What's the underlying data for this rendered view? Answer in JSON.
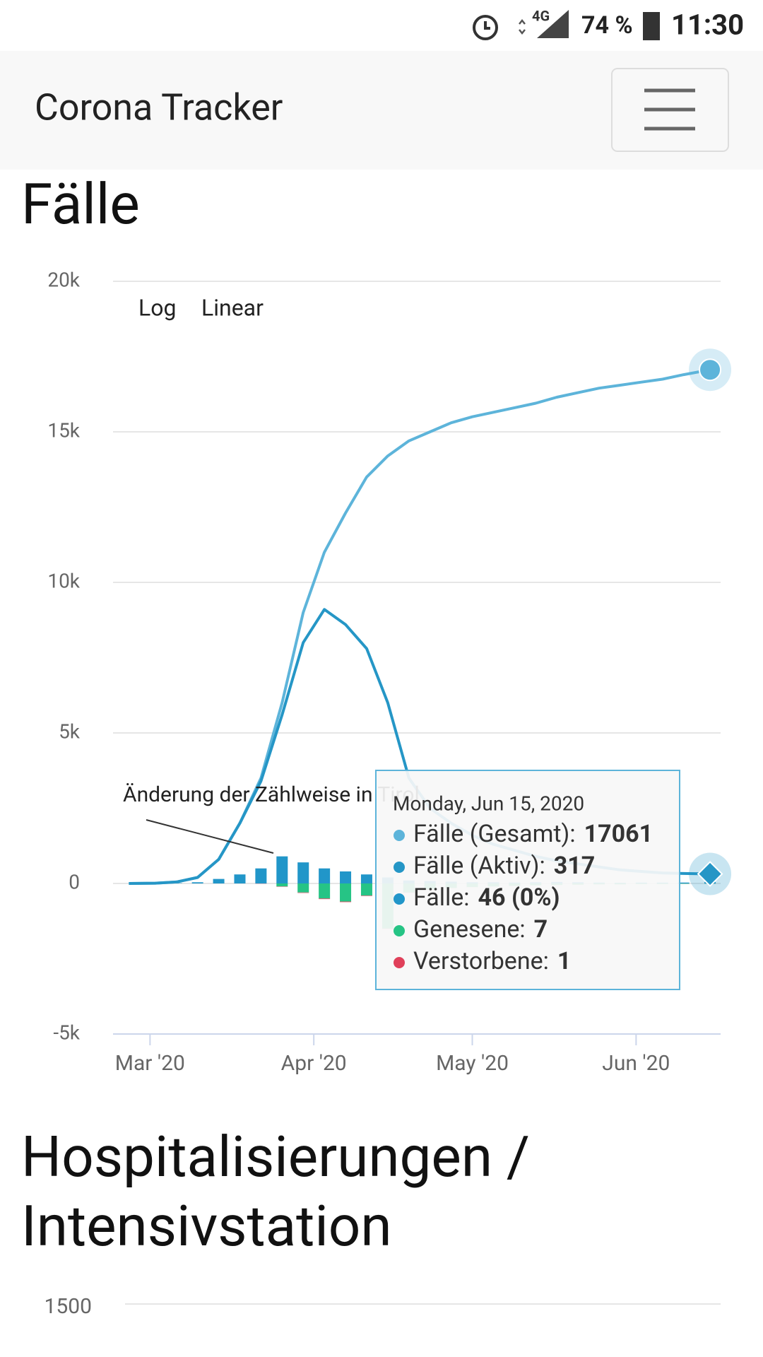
{
  "status_bar": {
    "network": "4G",
    "battery": "74 %",
    "time": "11:30"
  },
  "navbar": {
    "title": "Corona Tracker"
  },
  "section_title": "Fälle",
  "scale_buttons": [
    "Log",
    "Linear"
  ],
  "chart_data": {
    "type": "line",
    "x": [
      "2020-02-26",
      "2020-03-02",
      "2020-03-06",
      "2020-03-10",
      "2020-03-14",
      "2020-03-18",
      "2020-03-22",
      "2020-03-26",
      "2020-03-30",
      "2020-04-03",
      "2020-04-07",
      "2020-04-11",
      "2020-04-15",
      "2020-04-19",
      "2020-04-23",
      "2020-04-27",
      "2020-05-01",
      "2020-05-05",
      "2020-05-09",
      "2020-05-13",
      "2020-05-17",
      "2020-05-21",
      "2020-05-25",
      "2020-05-29",
      "2020-06-02",
      "2020-06-06",
      "2020-06-10",
      "2020-06-15"
    ],
    "series": [
      {
        "type": "line",
        "color": "#5db4da",
        "values": [
          0,
          10,
          50,
          200,
          800,
          2000,
          3500,
          6000,
          9000,
          11000,
          12300,
          13500,
          14200,
          14700,
          15000,
          15300,
          15500,
          15650,
          15800,
          15950,
          16150,
          16300,
          16450,
          16550,
          16650,
          16750,
          16900,
          17061
        ]
      },
      {
        "type": "line",
        "color": "#2596c6",
        "values": [
          0,
          10,
          50,
          200,
          800,
          2000,
          3400,
          5600,
          8000,
          9100,
          8600,
          7800,
          6000,
          3500,
          2500,
          2000,
          1600,
          1300,
          1100,
          900,
          750,
          650,
          550,
          450,
          400,
          350,
          330,
          317
        ]
      },
      {
        "type": "bar",
        "color": "#2196c9",
        "values": [
          0,
          2,
          10,
          40,
          150,
          300,
          500,
          900,
          700,
          500,
          400,
          300,
          200,
          100,
          80,
          60,
          40,
          40,
          30,
          40,
          50,
          40,
          30,
          20,
          30,
          30,
          30,
          46
        ]
      },
      {
        "type": "bar",
        "color": "#26c485",
        "values": [
          0,
          0,
          0,
          0,
          0,
          0,
          0,
          -100,
          -300,
          -500,
          -600,
          -400,
          -1500,
          -300,
          -200,
          -150,
          -120,
          -100,
          -80,
          -60,
          -50,
          -40,
          -30,
          -30,
          -20,
          -20,
          -10,
          -7
        ]
      },
      {
        "type": "bar",
        "color": "#e0405a",
        "values": [
          0,
          0,
          0,
          0,
          0,
          0,
          -5,
          -10,
          -15,
          -20,
          -20,
          -15,
          -10,
          -8,
          -5,
          -5,
          -3,
          -2,
          -2,
          -1,
          -1,
          -1,
          -1,
          -1,
          -1,
          -1,
          -1,
          -1
        ]
      }
    ],
    "xlim": [
      "2020-02-23",
      "2020-06-17"
    ],
    "xticks": [
      {
        "value": "2020-03-01",
        "label": "Mar '20"
      },
      {
        "value": "2020-04-01",
        "label": "Apr '20"
      },
      {
        "value": "2020-05-01",
        "label": "May '20"
      },
      {
        "value": "2020-06-01",
        "label": "Jun '20"
      }
    ],
    "ylim": [
      -5000,
      20000
    ],
    "yticks": [
      {
        "value": -5000,
        "label": "-5k"
      },
      0,
      {
        "value": 5000,
        "label": "5k"
      },
      {
        "value": 10000,
        "label": "10k"
      },
      {
        "value": 15000,
        "label": "15k"
      },
      {
        "value": 20000,
        "label": "20k"
      }
    ],
    "grid": true,
    "annotation": "Änderung der Zählweise in Tirol",
    "tooltip": {
      "date": "Monday, Jun 15, 2020",
      "rows": [
        {
          "label": "Fälle (Gesamt):",
          "value": 17061
        },
        {
          "label": "Fälle (Aktiv):",
          "value": 317
        },
        {
          "label": "Fälle:",
          "value": "46 (0%)"
        },
        {
          "label": "Genesene:",
          "value": 7
        },
        {
          "label": "Verstorbene:",
          "value": 1
        }
      ]
    }
  },
  "section2_title": [
    "Hospitalisierungen /",
    "Intensivstation"
  ],
  "hospital_chart": {
    "yticks": [
      1500
    ]
  }
}
